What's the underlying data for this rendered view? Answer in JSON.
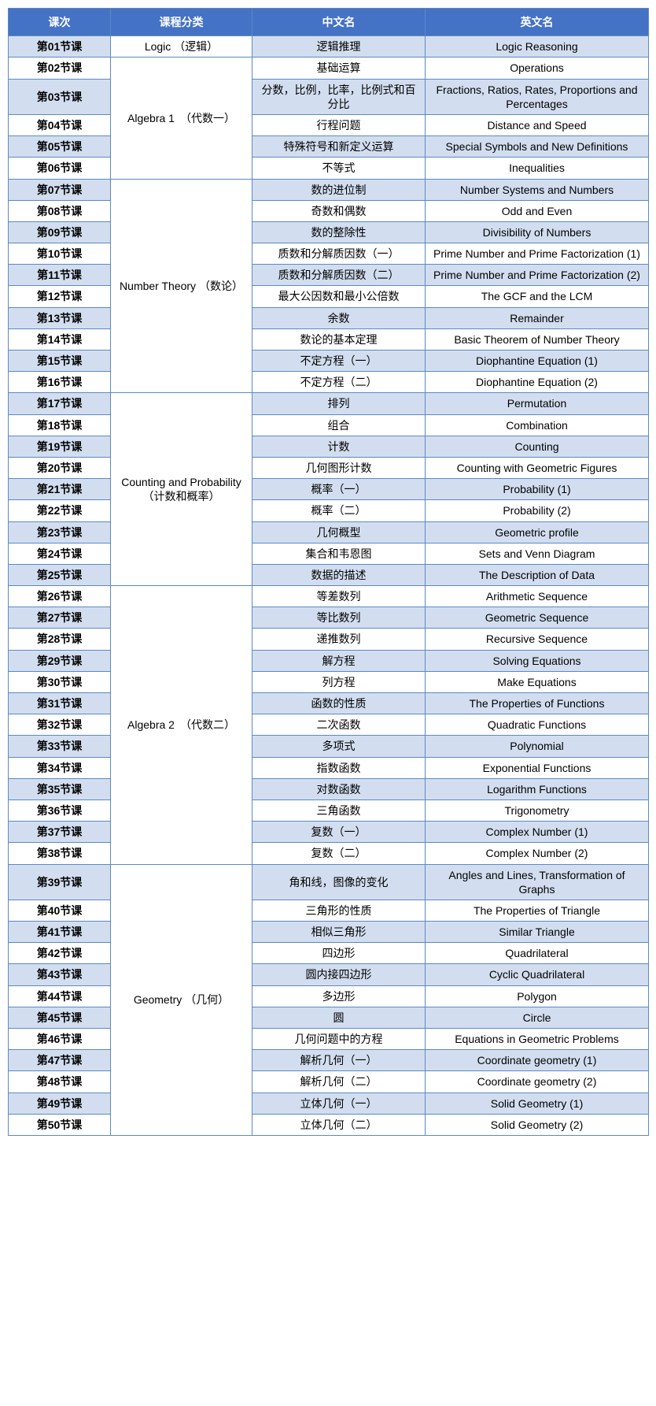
{
  "headers": {
    "lesson": "课次",
    "category": "课程分类",
    "zh": "中文名",
    "en": "英文名"
  },
  "categories": [
    {
      "name": "Logic （逻辑）",
      "start": 0,
      "span": 1
    },
    {
      "name": "Algebra 1　（代数一）",
      "start": 1,
      "span": 5
    },
    {
      "name": "Number Theory （数论）",
      "start": 6,
      "span": 10
    },
    {
      "name": "Counting and Probability （计数和概率）",
      "start": 16,
      "span": 9
    },
    {
      "name": "Algebra 2　（代数二）",
      "start": 25,
      "span": 13
    },
    {
      "name": "Geometry （几何）",
      "start": 38,
      "span": 12
    }
  ],
  "rows": [
    {
      "lesson": "第01节课",
      "zh": "逻辑推理",
      "en": "Logic Reasoning",
      "shade": true
    },
    {
      "lesson": "第02节课",
      "zh": "基础运算",
      "en": "Operations",
      "shade": false
    },
    {
      "lesson": "第03节课",
      "zh": "分数，比例，比率，比例式和百分比",
      "en": "Fractions, Ratios, Rates, Proportions and Percentages",
      "shade": true
    },
    {
      "lesson": "第04节课",
      "zh": "行程问题",
      "en": "Distance and Speed",
      "shade": false
    },
    {
      "lesson": "第05节课",
      "zh": "特殊符号和新定义运算",
      "en": "Special Symbols and New Definitions",
      "shade": true
    },
    {
      "lesson": "第06节课",
      "zh": "不等式",
      "en": "Inequalities",
      "shade": false
    },
    {
      "lesson": "第07节课",
      "zh": "数的进位制",
      "en": "Number Systems and Numbers",
      "shade": true
    },
    {
      "lesson": "第08节课",
      "zh": "奇数和偶数",
      "en": "Odd and Even",
      "shade": false
    },
    {
      "lesson": "第09节课",
      "zh": "数的整除性",
      "en": "Divisibility of Numbers",
      "shade": true
    },
    {
      "lesson": "第10节课",
      "zh": "质数和分解质因数（一）",
      "en": "Prime Number and Prime Factorization (1)",
      "shade": false
    },
    {
      "lesson": "第11节课",
      "zh": "质数和分解质因数（二）",
      "en": "Prime Number and Prime Factorization (2)",
      "shade": true
    },
    {
      "lesson": "第12节课",
      "zh": "最大公因数和最小公倍数",
      "en": "The GCF and the LCM",
      "shade": false
    },
    {
      "lesson": "第13节课",
      "zh": "余数",
      "en": "Remainder",
      "shade": true
    },
    {
      "lesson": "第14节课",
      "zh": "数论的基本定理",
      "en": "Basic Theorem of Number Theory",
      "shade": false
    },
    {
      "lesson": "第15节课",
      "zh": "不定方程（一）",
      "en": "Diophantine Equation (1)",
      "shade": true
    },
    {
      "lesson": "第16节课",
      "zh": "不定方程（二）",
      "en": "Diophantine Equation (2)",
      "shade": false
    },
    {
      "lesson": "第17节课",
      "zh": "排列",
      "en": "Permutation",
      "shade": true
    },
    {
      "lesson": "第18节课",
      "zh": "组合",
      "en": "Combination",
      "shade": false
    },
    {
      "lesson": "第19节课",
      "zh": "计数",
      "en": "Counting",
      "shade": true
    },
    {
      "lesson": "第20节课",
      "zh": "几何图形计数",
      "en": "Counting with Geometric Figures",
      "shade": false
    },
    {
      "lesson": "第21节课",
      "zh": "概率（一）",
      "en": "Probability (1)",
      "shade": true
    },
    {
      "lesson": "第22节课",
      "zh": "概率（二）",
      "en": "Probability (2)",
      "shade": false
    },
    {
      "lesson": "第23节课",
      "zh": "几何概型",
      "en": "Geometric profile",
      "shade": true
    },
    {
      "lesson": "第24节课",
      "zh": "集合和韦恩图",
      "en": "Sets and Venn Diagram",
      "shade": false
    },
    {
      "lesson": "第25节课",
      "zh": "数据的描述",
      "en": "The Description of Data",
      "shade": true
    },
    {
      "lesson": "第26节课",
      "zh": "等差数列",
      "en": "Arithmetic Sequence",
      "shade": false
    },
    {
      "lesson": "第27节课",
      "zh": "等比数列",
      "en": "Geometric Sequence",
      "shade": true
    },
    {
      "lesson": "第28节课",
      "zh": "递推数列",
      "en": "Recursive Sequence",
      "shade": false
    },
    {
      "lesson": "第29节课",
      "zh": "解方程",
      "en": "Solving Equations",
      "shade": true
    },
    {
      "lesson": "第30节课",
      "zh": "列方程",
      "en": "Make Equations",
      "shade": false
    },
    {
      "lesson": "第31节课",
      "zh": "函数的性质",
      "en": "The Properties of Functions",
      "shade": true
    },
    {
      "lesson": "第32节课",
      "zh": "二次函数",
      "en": "Quadratic Functions",
      "shade": false
    },
    {
      "lesson": "第33节课",
      "zh": "多项式",
      "en": "Polynomial",
      "shade": true
    },
    {
      "lesson": "第34节课",
      "zh": "指数函数",
      "en": "Exponential Functions",
      "shade": false
    },
    {
      "lesson": "第35节课",
      "zh": "对数函数",
      "en": "Logarithm Functions",
      "shade": true
    },
    {
      "lesson": "第36节课",
      "zh": "三角函数",
      "en": "Trigonometry",
      "shade": false
    },
    {
      "lesson": "第37节课",
      "zh": "复数（一）",
      "en": "Complex Number (1)",
      "shade": true
    },
    {
      "lesson": "第38节课",
      "zh": "复数（二）",
      "en": "Complex Number (2)",
      "shade": false
    },
    {
      "lesson": "第39节课",
      "zh": "角和线，图像的变化",
      "en": "Angles and Lines, Transformation of Graphs",
      "shade": true
    },
    {
      "lesson": "第40节课",
      "zh": "三角形的性质",
      "en": "The Properties of Triangle",
      "shade": false
    },
    {
      "lesson": "第41节课",
      "zh": "相似三角形",
      "en": "Similar Triangle",
      "shade": true
    },
    {
      "lesson": "第42节课",
      "zh": "四边形",
      "en": "Quadrilateral",
      "shade": false
    },
    {
      "lesson": "第43节课",
      "zh": "圆内接四边形",
      "en": "Cyclic Quadrilateral",
      "shade": true
    },
    {
      "lesson": "第44节课",
      "zh": "多边形",
      "en": "Polygon",
      "shade": false
    },
    {
      "lesson": "第45节课",
      "zh": "圆",
      "en": "Circle",
      "shade": true
    },
    {
      "lesson": "第46节课",
      "zh": "几何问题中的方程",
      "en": "Equations in Geometric Problems",
      "shade": false
    },
    {
      "lesson": "第47节课",
      "zh": "解析几何（一）",
      "en": "Coordinate geometry (1)",
      "shade": true
    },
    {
      "lesson": "第48节课",
      "zh": "解析几何（二）",
      "en": "Coordinate geometry (2)",
      "shade": false
    },
    {
      "lesson": "第49节课",
      "zh": "立体几何（一）",
      "en": "Solid Geometry (1)",
      "shade": true
    },
    {
      "lesson": "第50节课",
      "zh": "立体几何（二）",
      "en": "Solid Geometry (2)",
      "shade": false
    }
  ],
  "style": {
    "header_bg": "#4472c4",
    "header_fg": "#ffffff",
    "shade_bg": "#d2deef",
    "border_color": "#5b89c7",
    "font_size": 14
  }
}
